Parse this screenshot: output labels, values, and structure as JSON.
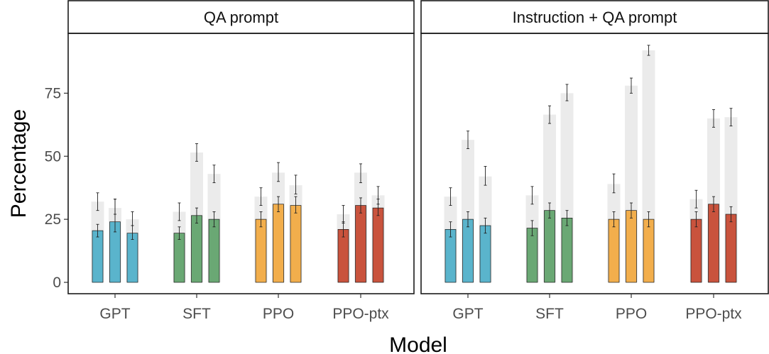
{
  "chart_data": {
    "type": "bar",
    "xlabel": "Model",
    "ylabel": "Percentage",
    "ylim": [
      0,
      100
    ],
    "yticks": [
      "0",
      "25",
      "50",
      "75"
    ],
    "categories": [
      "GPT",
      "SFT",
      "PPO",
      "PPO-ptx"
    ],
    "colors": {
      "GPT": "#5ab4cc",
      "SFT": "#6aa874",
      "PPO": "#f2ae4c",
      "PPO-ptx": "#c9533d",
      "background": "#ebebeb"
    },
    "grid": false,
    "facets": [
      {
        "title": "QA prompt",
        "groups": [
          {
            "model": "GPT",
            "bars": [
              {
                "value": 20.5,
                "err": [
                  18,
                  23
                ],
                "bg": 32,
                "bg_err": [
                  28.5,
                  35.5
                ]
              },
              {
                "value": 24,
                "err": [
                  20,
                  33
                ],
                "bg": 29.5,
                "bg_err": [
                  27,
                  33
                ]
              },
              {
                "value": 19.5,
                "err": [
                  17,
                  22.5
                ],
                "bg": 25,
                "bg_err": [
                  22.5,
                  28
                ]
              }
            ]
          },
          {
            "model": "SFT",
            "bars": [
              {
                "value": 19.5,
                "err": [
                  17,
                  22
                ],
                "bg": 28,
                "bg_err": [
                  24.5,
                  31.5
                ]
              },
              {
                "value": 26.5,
                "err": [
                  23.5,
                  29.5
                ],
                "bg": 51.5,
                "bg_err": [
                  48,
                  55
                ]
              },
              {
                "value": 25,
                "err": [
                  22,
                  28
                ],
                "bg": 43,
                "bg_err": [
                  39.5,
                  46.5
                ]
              }
            ]
          },
          {
            "model": "PPO",
            "bars": [
              {
                "value": 25,
                "err": [
                  22,
                  28
                ],
                "bg": 34,
                "bg_err": [
                  30.5,
                  37.5
                ]
              },
              {
                "value": 31,
                "err": [
                  28,
                  34
                ],
                "bg": 43.5,
                "bg_err": [
                  40,
                  47.5
                ]
              },
              {
                "value": 30.5,
                "err": [
                  27.5,
                  34
                ],
                "bg": 38.5,
                "bg_err": [
                  35,
                  42.5
                ]
              }
            ]
          },
          {
            "model": "PPO-ptx",
            "bars": [
              {
                "value": 21,
                "err": [
                  18,
                  24
                ],
                "bg": 27,
                "bg_err": [
                  23.5,
                  30.5
                ]
              },
              {
                "value": 30.5,
                "err": [
                  27.5,
                  33.5
                ],
                "bg": 43.5,
                "bg_err": [
                  39.5,
                  47
                ]
              },
              {
                "value": 29.5,
                "err": [
                  26.5,
                  33
                ],
                "bg": 34.5,
                "bg_err": [
                  31,
                  38
                ]
              }
            ]
          }
        ]
      },
      {
        "title": "Instruction + QA prompt",
        "groups": [
          {
            "model": "GPT",
            "bars": [
              {
                "value": 21,
                "err": [
                  18,
                  24
                ],
                "bg": 34,
                "bg_err": [
                  30.5,
                  37.5
                ]
              },
              {
                "value": 25,
                "err": [
                  22,
                  28
                ],
                "bg": 56.5,
                "bg_err": [
                  53,
                  60
                ]
              },
              {
                "value": 22.5,
                "err": [
                  19.5,
                  25.5
                ],
                "bg": 42,
                "bg_err": [
                  38.5,
                  46
                ]
              }
            ]
          },
          {
            "model": "SFT",
            "bars": [
              {
                "value": 21.5,
                "err": [
                  18.5,
                  24.5
                ],
                "bg": 34.5,
                "bg_err": [
                  31,
                  38
                ]
              },
              {
                "value": 28.5,
                "err": [
                  25.5,
                  31.5
                ],
                "bg": 66.5,
                "bg_err": [
                  63,
                  70
                ]
              },
              {
                "value": 25.5,
                "err": [
                  22.5,
                  28.5
                ],
                "bg": 75,
                "bg_err": [
                  72,
                  78.5
                ]
              }
            ]
          },
          {
            "model": "PPO",
            "bars": [
              {
                "value": 25,
                "err": [
                  22,
                  28
                ],
                "bg": 39,
                "bg_err": [
                  35.5,
                  43
                ]
              },
              {
                "value": 28.5,
                "err": [
                  25.5,
                  31.5
                ],
                "bg": 78,
                "bg_err": [
                  75,
                  81
                ]
              },
              {
                "value": 25,
                "err": [
                  22,
                  28
                ],
                "bg": 92,
                "bg_err": [
                  90,
                  94
                ]
              }
            ]
          },
          {
            "model": "PPO-ptx",
            "bars": [
              {
                "value": 25,
                "err": [
                  22,
                  28
                ],
                "bg": 33,
                "bg_err": [
                  29.5,
                  36.5
                ]
              },
              {
                "value": 31,
                "err": [
                  28,
                  34
                ],
                "bg": 65,
                "bg_err": [
                  61.5,
                  68.5
                ]
              },
              {
                "value": 27,
                "err": [
                  24,
                  30
                ],
                "bg": 65.5,
                "bg_err": [
                  62,
                  69
                ]
              }
            ]
          }
        ]
      }
    ]
  }
}
